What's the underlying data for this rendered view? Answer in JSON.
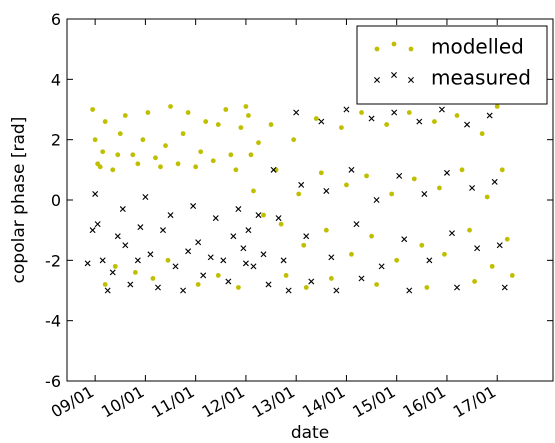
{
  "chart_data": {
    "type": "scatter",
    "xlabel": "date",
    "ylabel": "copolar phase [rad]",
    "xlim": [
      8.44,
      18.11
    ],
    "ylim": [
      -6,
      6
    ],
    "xticks": [
      {
        "value": 9,
        "label": "09/01"
      },
      {
        "value": 10,
        "label": "10/01"
      },
      {
        "value": 11,
        "label": "11/01"
      },
      {
        "value": 12,
        "label": "12/01"
      },
      {
        "value": 13,
        "label": "13/01"
      },
      {
        "value": 14,
        "label": "14/01"
      },
      {
        "value": 15,
        "label": "15/01"
      },
      {
        "value": 16,
        "label": "16/01"
      },
      {
        "value": 17,
        "label": "17/01"
      }
    ],
    "yticks": [
      -6,
      -4,
      -2,
      0,
      2,
      4,
      6
    ],
    "legend": "upper right",
    "series": [
      {
        "name": "modelled",
        "color": "#bfbf00",
        "marker": "dot",
        "x": [
          8.95,
          9.0,
          9.05,
          9.1,
          9.15,
          9.2,
          9.35,
          9.45,
          9.5,
          9.6,
          9.75,
          9.85,
          9.95,
          10.05,
          10.2,
          10.3,
          10.4,
          10.5,
          10.65,
          10.75,
          10.85,
          11.0,
          11.1,
          11.2,
          11.35,
          11.45,
          11.6,
          11.7,
          11.8,
          11.9,
          12.0,
          9.2,
          9.4,
          9.8,
          10.15,
          10.45,
          11.05,
          11.45,
          11.85,
          12.05,
          12.1,
          12.15,
          12.25,
          12.35,
          12.5,
          12.6,
          12.7,
          12.8,
          12.95,
          13.05,
          13.15,
          13.2,
          13.4,
          13.5,
          13.6,
          13.7,
          13.9,
          14.0,
          14.1,
          14.3,
          14.4,
          14.5,
          14.6,
          14.8,
          14.9,
          15.0,
          15.25,
          15.35,
          15.5,
          15.6,
          15.75,
          15.85,
          15.95,
          16.2,
          16.3,
          16.45,
          16.55,
          16.7,
          16.8,
          16.9,
          17.0,
          17.1,
          17.2,
          17.3
        ],
        "values": [
          3.0,
          2.0,
          1.2,
          1.1,
          1.6,
          2.6,
          1.0,
          1.5,
          2.2,
          2.8,
          1.5,
          1.2,
          2.0,
          2.9,
          1.4,
          1.1,
          1.8,
          3.1,
          1.2,
          2.2,
          2.9,
          1.1,
          1.6,
          2.6,
          1.3,
          2.5,
          3.0,
          1.5,
          1.0,
          2.4,
          3.1,
          -2.8,
          -2.2,
          -2.4,
          -2.6,
          -2.0,
          -2.8,
          -2.5,
          -2.9,
          2.8,
          1.5,
          0.3,
          1.9,
          -0.5,
          2.5,
          1.0,
          -0.8,
          -2.5,
          2.0,
          0.2,
          -1.5,
          -2.9,
          2.7,
          0.9,
          -1.0,
          -2.6,
          2.4,
          0.5,
          -1.8,
          2.9,
          0.8,
          -1.2,
          -2.8,
          2.5,
          0.2,
          -2.0,
          2.9,
          0.7,
          -1.5,
          -2.9,
          2.6,
          0.4,
          -1.8,
          2.8,
          1.0,
          -1.0,
          -2.7,
          2.2,
          0.1,
          -2.2,
          3.1,
          1.0,
          -1.3,
          -2.5
        ]
      },
      {
        "name": "measured",
        "color": "#000000",
        "marker": "x",
        "x": [
          8.85,
          8.95,
          9.0,
          9.05,
          9.15,
          9.25,
          9.35,
          9.45,
          9.55,
          9.6,
          9.7,
          9.85,
          9.9,
          10.0,
          10.1,
          10.25,
          10.35,
          10.5,
          10.6,
          10.75,
          10.85,
          10.95,
          11.05,
          11.15,
          11.3,
          11.4,
          11.55,
          11.65,
          11.75,
          11.85,
          11.95,
          12.0,
          12.05,
          12.15,
          12.25,
          12.35,
          12.45,
          12.55,
          12.65,
          12.75,
          12.85,
          13.0,
          13.1,
          13.2,
          13.3,
          13.5,
          13.6,
          13.7,
          13.8,
          14.0,
          14.1,
          14.2,
          14.3,
          14.5,
          14.6,
          14.7,
          14.95,
          15.05,
          15.15,
          15.25,
          15.45,
          15.55,
          15.65,
          15.9,
          16.0,
          16.1,
          16.2,
          16.4,
          16.5,
          16.6,
          16.85,
          16.95,
          17.05,
          17.15
        ],
        "values": [
          -2.1,
          -1.0,
          0.2,
          -0.8,
          -2.0,
          -3.0,
          -2.4,
          -1.2,
          -0.3,
          -1.5,
          -2.8,
          -2.0,
          -0.9,
          0.1,
          -1.8,
          -2.9,
          -1.0,
          -0.5,
          -2.2,
          -3.0,
          -1.7,
          -0.2,
          -1.4,
          -2.5,
          -1.9,
          -0.6,
          -2.0,
          -2.7,
          -1.2,
          -0.3,
          -1.6,
          -2.1,
          -1.0,
          -2.2,
          -0.5,
          -1.8,
          -2.8,
          1.0,
          -0.6,
          -2.0,
          -3.0,
          2.9,
          0.5,
          -1.2,
          -2.7,
          2.6,
          0.3,
          -1.9,
          -3.0,
          3.0,
          1.0,
          -0.8,
          -2.6,
          2.7,
          0.0,
          -2.2,
          2.9,
          0.8,
          -1.3,
          -3.0,
          2.6,
          0.2,
          -2.0,
          3.0,
          0.9,
          -1.1,
          -2.9,
          2.5,
          0.4,
          -1.6,
          2.8,
          0.6,
          -1.5,
          -2.9
        ]
      }
    ]
  }
}
